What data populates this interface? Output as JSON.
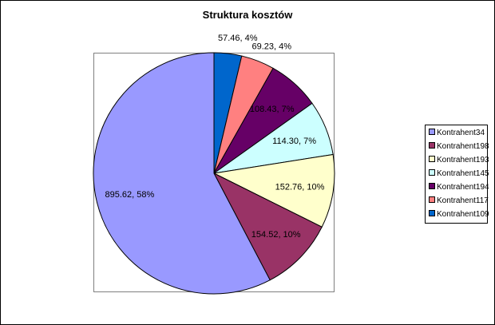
{
  "chart_data": {
    "type": "pie",
    "title": "Struktura kosztów",
    "legend_position": "right",
    "slices": [
      {
        "name": "Kontrahent34",
        "value": 895.62,
        "percent": 58,
        "label": "895.62, 58%",
        "color": "#9999FF"
      },
      {
        "name": "Kontrahent198",
        "value": 154.52,
        "percent": 10,
        "label": "154.52, 10%",
        "color": "#993366"
      },
      {
        "name": "Kontrahent193",
        "value": 152.76,
        "percent": 10,
        "label": "152.76, 10%",
        "color": "#FFFFCC"
      },
      {
        "name": "Kontrahent145",
        "value": 114.3,
        "percent": 7,
        "label": "114.30, 7%",
        "color": "#CCFFFF"
      },
      {
        "name": "Kontrahent194",
        "value": 108.43,
        "percent": 7,
        "label": "108.43, 7%",
        "color": "#660066"
      },
      {
        "name": "Kontrahent117",
        "value": 69.23,
        "percent": 4,
        "label": "69.23, 4%",
        "color": "#FF8080"
      },
      {
        "name": "Kontrahent109",
        "value": 57.46,
        "percent": 4,
        "label": "57.46, 4%",
        "color": "#0066CC"
      }
    ]
  }
}
